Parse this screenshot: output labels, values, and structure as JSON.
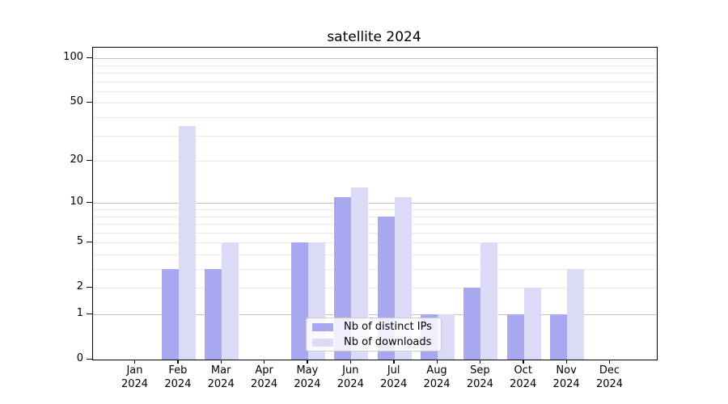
{
  "chart_data": {
    "type": "bar",
    "title": "satellite 2024",
    "categories": [
      "Jan",
      "Feb",
      "Mar",
      "Apr",
      "May",
      "Jun",
      "Jul",
      "Aug",
      "Sep",
      "Oct",
      "Nov",
      "Dec"
    ],
    "category_year": "2024",
    "series": [
      {
        "name": "Nb of distinct IPs",
        "color": "#a8a8f0",
        "values": [
          0,
          3,
          3,
          0,
          5,
          11,
          8,
          1,
          2,
          1,
          1,
          0
        ]
      },
      {
        "name": "Nb of downloads",
        "color": "#dbdbf8",
        "values": [
          0,
          35,
          5,
          0,
          5,
          13,
          11,
          1,
          5,
          2,
          3,
          0
        ]
      }
    ],
    "yscale": "log1p",
    "ylim": [
      0,
      118
    ],
    "ytick_values": [
      0,
      1,
      2,
      5,
      10,
      20,
      50,
      100
    ],
    "ytick_labels": [
      "0",
      "1",
      "2",
      "5",
      "10",
      "20",
      "50",
      "100"
    ],
    "grid_major_values": [
      1,
      10,
      100
    ],
    "grid_minor_values": [
      2,
      3,
      4,
      5,
      6,
      7,
      8,
      9,
      20,
      30,
      40,
      50,
      60,
      70,
      80,
      90
    ],
    "grid": "both",
    "legend_position": "lower center",
    "colors": {
      "grid_major": "#c3c3c3",
      "grid_minor": "#e9e9e9",
      "spine": "#000000",
      "background": "#ffffff",
      "text": "#000000",
      "legend_border": "#cccccc",
      "legend_background": "rgba(255,255,255,0.8)"
    }
  }
}
